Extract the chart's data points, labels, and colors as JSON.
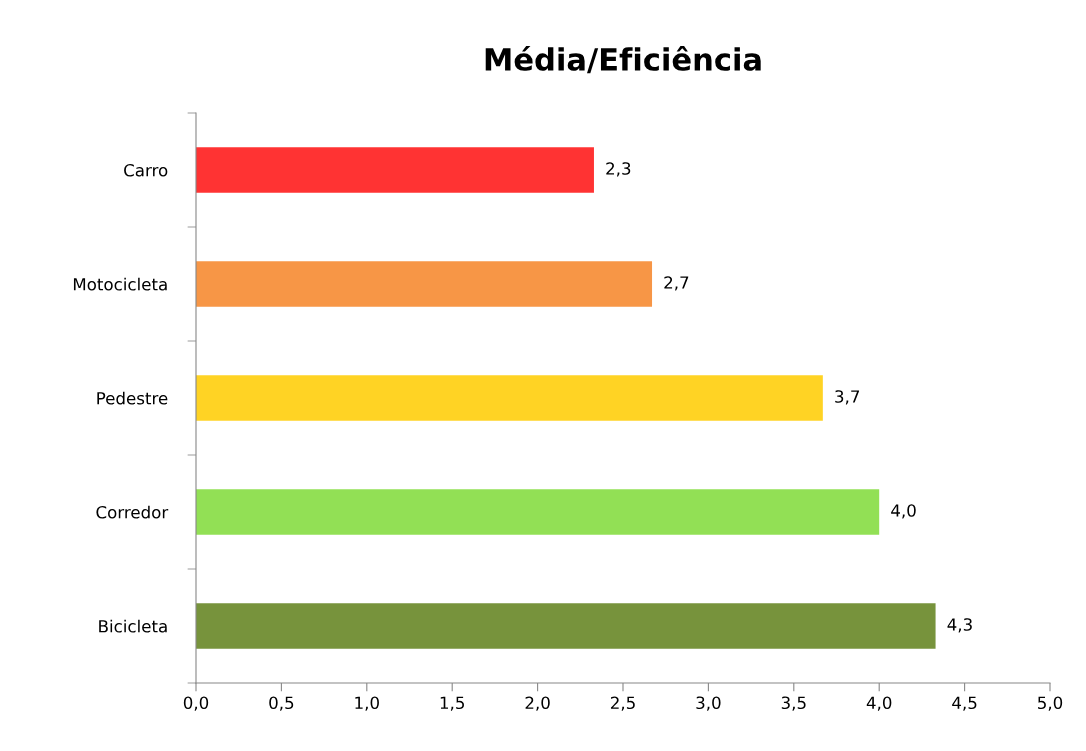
{
  "chart_data": {
    "type": "bar",
    "orientation": "horizontal",
    "title": "Média/Eficiência",
    "categories": [
      "Carro",
      "Motocicleta",
      "Pedestre",
      "Corredor",
      "Bicicleta"
    ],
    "values": [
      2.33,
      2.67,
      3.67,
      4.0,
      4.33
    ],
    "value_labels": [
      "2,3",
      "2,7",
      "3,7",
      "4,0",
      "4,3"
    ],
    "colors": [
      "#ff3333",
      "#f79646",
      "#ffd324",
      "#92e055",
      "#77933c"
    ],
    "xlim": [
      0,
      5
    ],
    "xticks": [
      {
        "value": 0,
        "label": "0,0"
      },
      {
        "value": 0.5,
        "label": "0,5"
      },
      {
        "value": 1,
        "label": "1,0"
      },
      {
        "value": 1.5,
        "label": "1,5"
      },
      {
        "value": 2,
        "label": "2,0"
      },
      {
        "value": 2.5,
        "label": "2,5"
      },
      {
        "value": 3,
        "label": "3,0"
      },
      {
        "value": 3.5,
        "label": "3,5"
      },
      {
        "value": 4,
        "label": "4,0"
      },
      {
        "value": 4.5,
        "label": "4,5"
      },
      {
        "value": 5,
        "label": "5,0"
      }
    ],
    "grid": false,
    "legend": false
  }
}
